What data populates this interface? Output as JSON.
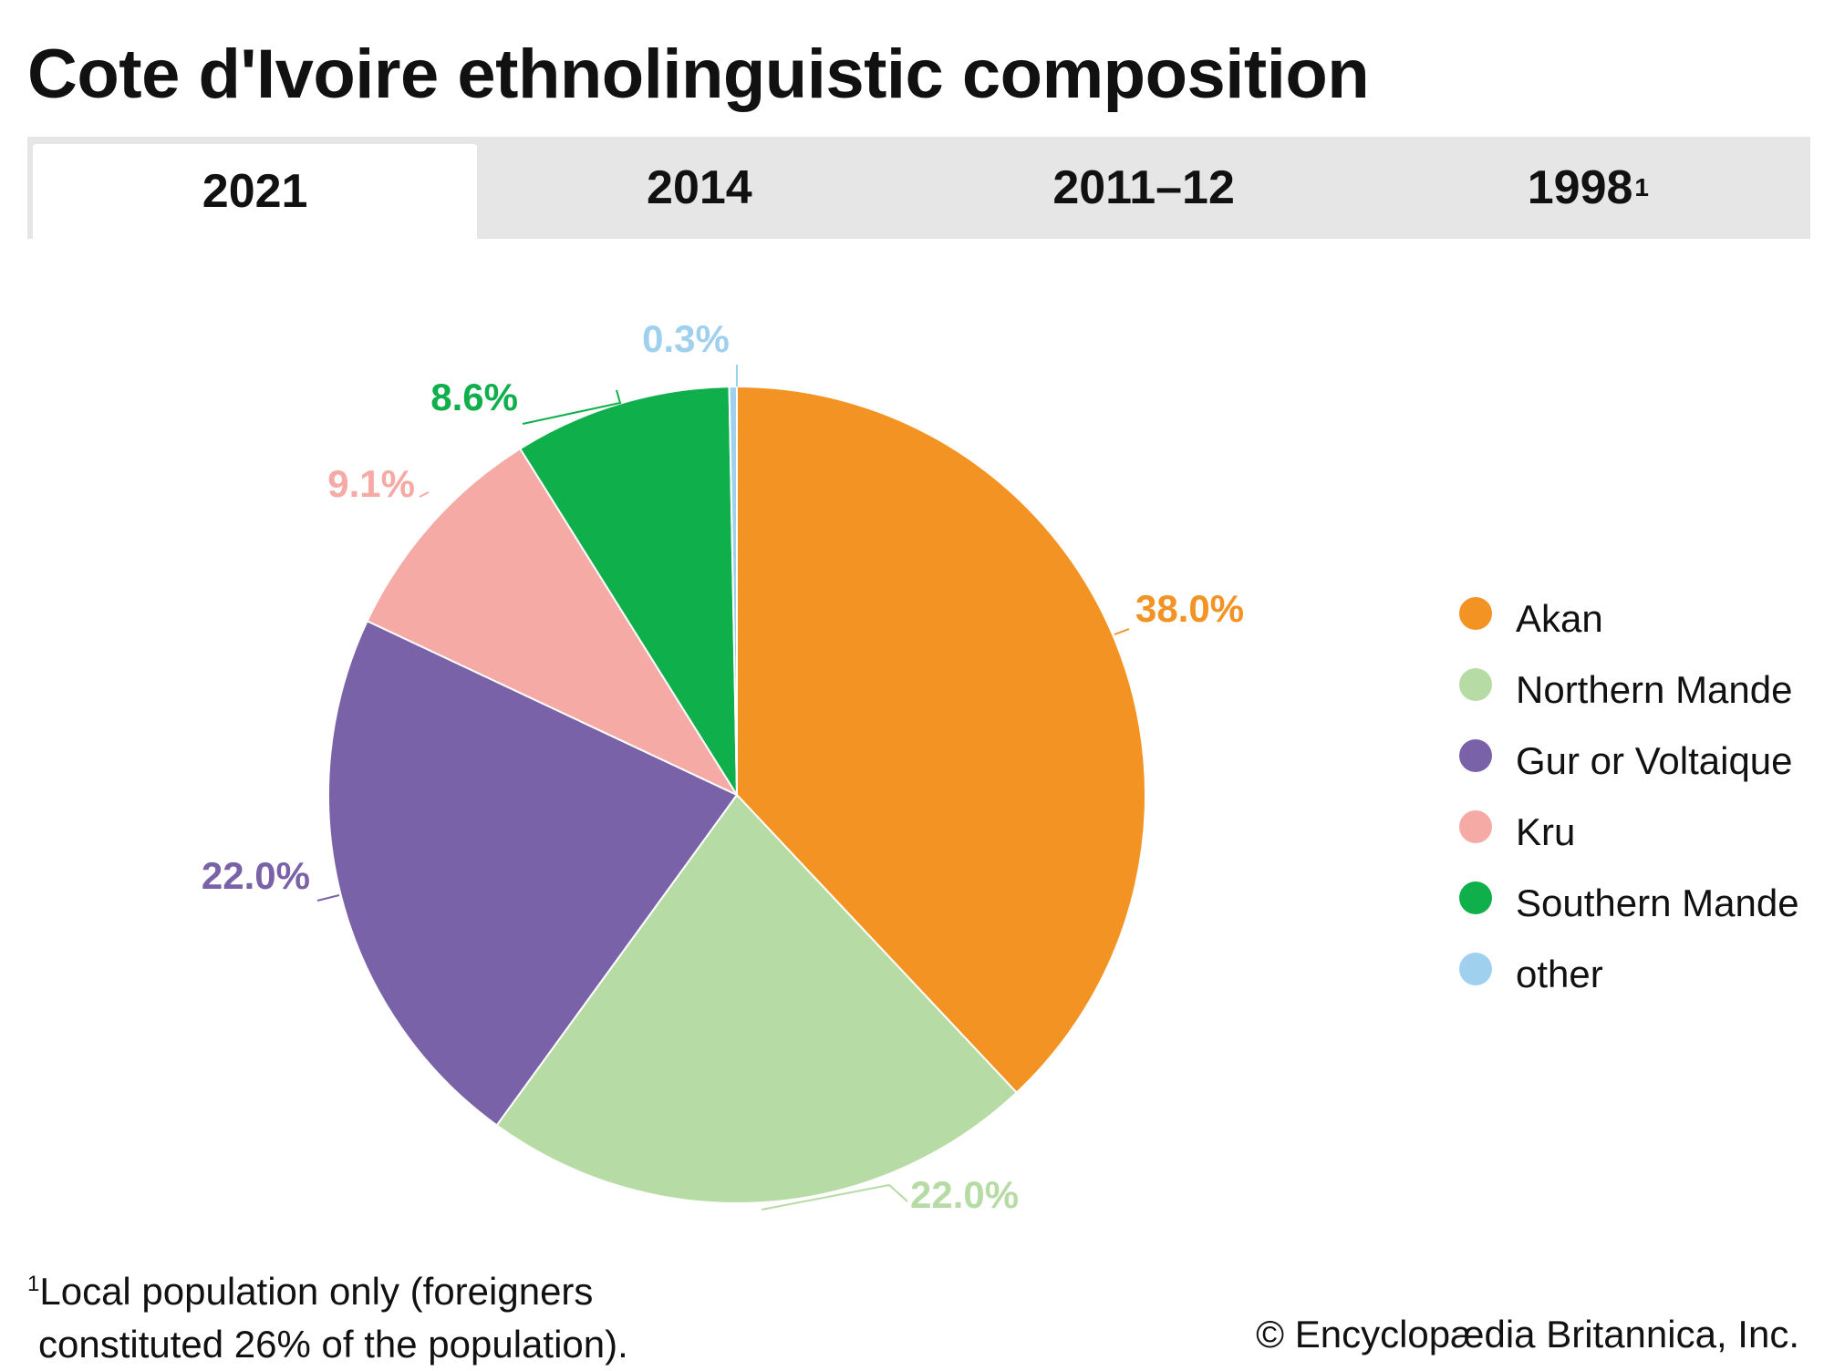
{
  "title": "Cote d'Ivoire ethnolinguistic composition",
  "tabs": [
    {
      "label": "2021",
      "active": true
    },
    {
      "label": "2014",
      "active": false
    },
    {
      "label": "2011–12",
      "active": false
    },
    {
      "label": "1998",
      "sup": "1",
      "active": false
    }
  ],
  "chart_data": {
    "type": "pie",
    "categories": [
      "Akan",
      "Northern Mande",
      "Gur or Voltaique",
      "Kru",
      "Southern Mande",
      "other"
    ],
    "values": [
      38.0,
      22.0,
      22.0,
      9.1,
      8.6,
      0.3
    ],
    "labels": [
      "38.0%",
      "22.0%",
      "22.0%",
      "9.1%",
      "8.6%",
      "0.3%"
    ],
    "colors": [
      "#f39323",
      "#b7dba4",
      "#7a62a8",
      "#f5aaa5",
      "#0faf4b",
      "#9fd1ef"
    ],
    "legend_position": "right"
  },
  "footnote": {
    "marker": "1",
    "line1": "Local population only (foreigners",
    "line2": "constituted 26% of the population)."
  },
  "copyright": "© Encyclopædia Britannica, Inc."
}
